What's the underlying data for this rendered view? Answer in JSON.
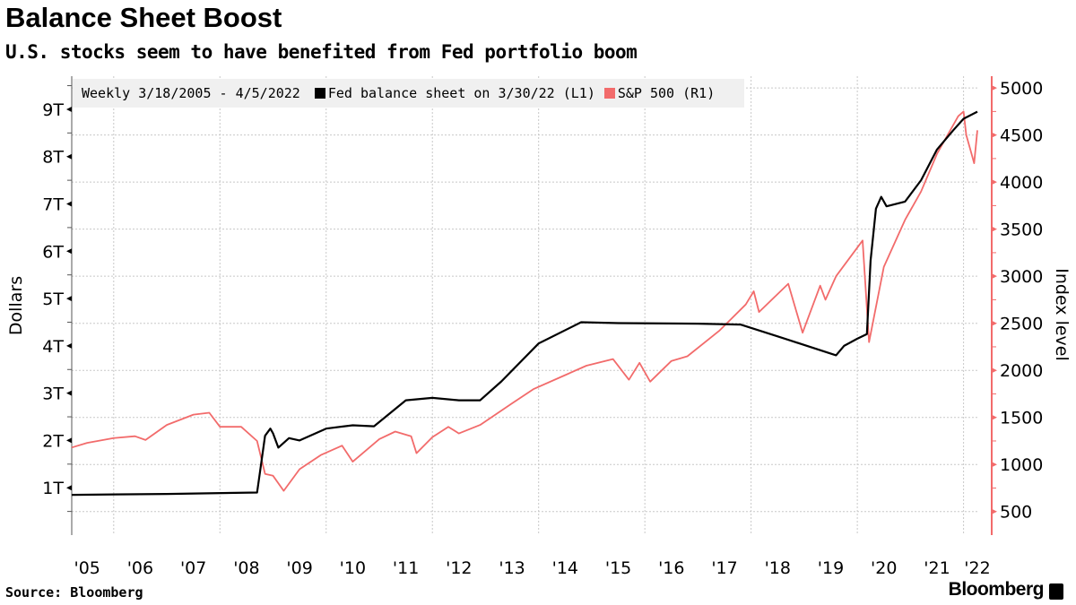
{
  "title": "Balance Sheet Boost",
  "subtitle": "U.S. stocks seem to have benefited from Fed portfolio boom",
  "source": "Source: Bloomberg",
  "brand": "Bloomberg",
  "chart_data": {
    "type": "line",
    "legend": {
      "period": "Weekly 3/18/2005 - 4/5/2022",
      "placement": "top-left"
    },
    "x_tick_labels": [
      "'05",
      "'06",
      "'07",
      "'08",
      "'09",
      "'10",
      "'11",
      "'12",
      "'13",
      "'14",
      "'15",
      "'16",
      "'17",
      "'18",
      "'19",
      "'20",
      "'21",
      "'22"
    ],
    "x_ticks": [
      2005,
      2006,
      2007,
      2008,
      2009,
      2010,
      2011,
      2012,
      2013,
      2014,
      2015,
      2016,
      2017,
      2018,
      2019,
      2020,
      2021,
      2022
    ],
    "xlim": [
      2005.21,
      2022.26
    ],
    "grid": true,
    "y_left": {
      "label": "Dollars",
      "ticks": [
        1,
        2,
        3,
        4,
        5,
        6,
        7,
        8,
        9
      ],
      "tick_labels": [
        "1T",
        "2T",
        "3T",
        "4T",
        "5T",
        "6T",
        "7T",
        "8T",
        "9T"
      ],
      "lim": [
        0,
        9.7
      ]
    },
    "y_right": {
      "label": "Index level",
      "ticks": [
        500,
        1000,
        1500,
        2000,
        2500,
        3000,
        3500,
        4000,
        4500,
        5000
      ],
      "tick_labels": [
        "500",
        "1000",
        "1500",
        "2000",
        "2500",
        "3000",
        "3500",
        "4000",
        "4500",
        "5000"
      ],
      "lim": [
        250,
        5125
      ],
      "color": "#f26b6b"
    },
    "series": [
      {
        "name": "Fed balance sheet on 3/30/22 (L1)",
        "axis": "left",
        "color": "#000000",
        "unit": "trillion USD",
        "points": [
          [
            2005.21,
            0.85
          ],
          [
            2007.0,
            0.87
          ],
          [
            2008.7,
            0.9
          ],
          [
            2008.75,
            1.3
          ],
          [
            2008.85,
            2.1
          ],
          [
            2008.95,
            2.25
          ],
          [
            2009.0,
            2.15
          ],
          [
            2009.1,
            1.85
          ],
          [
            2009.3,
            2.05
          ],
          [
            2009.5,
            2.0
          ],
          [
            2010.0,
            2.25
          ],
          [
            2010.5,
            2.32
          ],
          [
            2010.9,
            2.3
          ],
          [
            2011.5,
            2.85
          ],
          [
            2012.0,
            2.9
          ],
          [
            2012.5,
            2.85
          ],
          [
            2012.9,
            2.85
          ],
          [
            2013.3,
            3.25
          ],
          [
            2014.0,
            4.05
          ],
          [
            2014.8,
            4.5
          ],
          [
            2015.5,
            4.48
          ],
          [
            2017.0,
            4.47
          ],
          [
            2017.8,
            4.45
          ],
          [
            2018.5,
            4.2
          ],
          [
            2019.6,
            3.8
          ],
          [
            2019.75,
            4.0
          ],
          [
            2020.0,
            4.15
          ],
          [
            2020.18,
            4.25
          ],
          [
            2020.25,
            5.8
          ],
          [
            2020.35,
            6.9
          ],
          [
            2020.45,
            7.15
          ],
          [
            2020.55,
            6.95
          ],
          [
            2020.9,
            7.05
          ],
          [
            2021.2,
            7.5
          ],
          [
            2021.5,
            8.15
          ],
          [
            2021.8,
            8.55
          ],
          [
            2022.0,
            8.8
          ],
          [
            2022.26,
            8.95
          ]
        ]
      },
      {
        "name": "S&P 500 (R1)",
        "axis": "right",
        "color": "#f26b6b",
        "unit": "index level",
        "points": [
          [
            2005.21,
            1180
          ],
          [
            2005.5,
            1230
          ],
          [
            2006.0,
            1280
          ],
          [
            2006.4,
            1300
          ],
          [
            2006.6,
            1260
          ],
          [
            2007.0,
            1420
          ],
          [
            2007.5,
            1530
          ],
          [
            2007.8,
            1550
          ],
          [
            2008.0,
            1400
          ],
          [
            2008.4,
            1400
          ],
          [
            2008.7,
            1250
          ],
          [
            2008.85,
            900
          ],
          [
            2009.0,
            880
          ],
          [
            2009.2,
            720
          ],
          [
            2009.5,
            950
          ],
          [
            2009.9,
            1100
          ],
          [
            2010.3,
            1200
          ],
          [
            2010.5,
            1030
          ],
          [
            2011.0,
            1270
          ],
          [
            2011.3,
            1350
          ],
          [
            2011.6,
            1300
          ],
          [
            2011.7,
            1120
          ],
          [
            2012.0,
            1290
          ],
          [
            2012.3,
            1400
          ],
          [
            2012.5,
            1330
          ],
          [
            2012.9,
            1420
          ],
          [
            2013.5,
            1650
          ],
          [
            2013.9,
            1800
          ],
          [
            2014.5,
            1950
          ],
          [
            2014.9,
            2050
          ],
          [
            2015.4,
            2120
          ],
          [
            2015.7,
            1900
          ],
          [
            2015.9,
            2080
          ],
          [
            2016.1,
            1880
          ],
          [
            2016.5,
            2100
          ],
          [
            2016.8,
            2150
          ],
          [
            2017.4,
            2420
          ],
          [
            2017.9,
            2700
          ],
          [
            2018.05,
            2840
          ],
          [
            2018.15,
            2620
          ],
          [
            2018.7,
            2920
          ],
          [
            2018.97,
            2400
          ],
          [
            2019.3,
            2900
          ],
          [
            2019.4,
            2750
          ],
          [
            2019.6,
            3000
          ],
          [
            2020.1,
            3380
          ],
          [
            2020.22,
            2300
          ],
          [
            2020.5,
            3100
          ],
          [
            2020.7,
            3350
          ],
          [
            2020.9,
            3600
          ],
          [
            2021.2,
            3900
          ],
          [
            2021.5,
            4300
          ],
          [
            2021.9,
            4700
          ],
          [
            2022.0,
            4750
          ],
          [
            2022.05,
            4500
          ],
          [
            2022.15,
            4300
          ],
          [
            2022.2,
            4200
          ],
          [
            2022.26,
            4550
          ]
        ]
      }
    ]
  }
}
